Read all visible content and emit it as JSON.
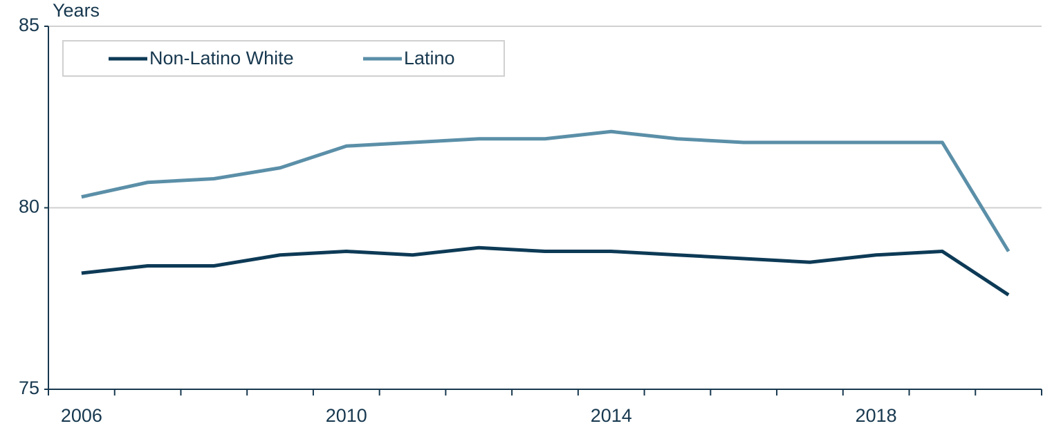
{
  "chart_data": {
    "type": "line",
    "y_label": "Years",
    "categories": [
      "2006",
      null,
      null,
      null,
      "2010",
      null,
      null,
      null,
      "2014",
      null,
      null,
      null,
      "2018",
      null,
      null
    ],
    "series": [
      {
        "name": "Non-Latino White",
        "color": "#0d3a56",
        "values": [
          78.2,
          78.4,
          78.4,
          78.7,
          78.8,
          78.7,
          78.9,
          78.8,
          78.8,
          78.7,
          78.6,
          78.5,
          78.7,
          78.8,
          77.6
        ]
      },
      {
        "name": "Latino",
        "color": "#5b8fa8",
        "values": [
          80.3,
          80.7,
          80.8,
          81.1,
          81.7,
          81.8,
          81.9,
          81.9,
          82.1,
          81.9,
          81.8,
          81.8,
          81.8,
          81.8,
          78.8
        ]
      }
    ],
    "ylim": [
      75,
      85
    ],
    "yticks": [
      75,
      80,
      85
    ],
    "grid": true,
    "legend": "top-left"
  }
}
